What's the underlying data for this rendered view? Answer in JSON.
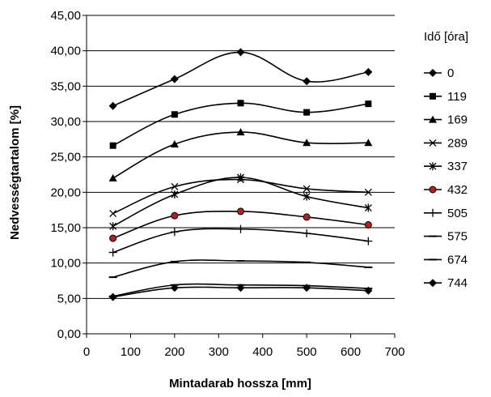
{
  "chart_data": {
    "type": "line",
    "title": "",
    "xlabel": "Mintadarab hossza [mm]",
    "ylabel": "Nedvességtartalom [%]",
    "xlim": [
      0,
      700
    ],
    "ylim": [
      0,
      45
    ],
    "x_ticks": [
      0,
      100,
      200,
      300,
      400,
      500,
      600,
      700
    ],
    "y_ticks": [
      0,
      5,
      10,
      15,
      20,
      25,
      30,
      35,
      40,
      45
    ],
    "x_tick_labels": [
      "0",
      "100",
      "200",
      "300",
      "400",
      "500",
      "600",
      "700"
    ],
    "y_tick_labels": [
      "0,00",
      "5,00",
      "10,00",
      "15,00",
      "20,00",
      "25,00",
      "30,00",
      "35,00",
      "40,00",
      "45,00"
    ],
    "grid": "horizontal",
    "legend_title": "Idő [óra]",
    "legend_position": "right",
    "x": [
      60,
      200,
      350,
      500,
      640
    ],
    "series": [
      {
        "name": "0",
        "marker": "diamond",
        "color": "#000000",
        "values": [
          32.2,
          36.0,
          39.8,
          35.7,
          37.0
        ]
      },
      {
        "name": "119",
        "marker": "square",
        "color": "#000000",
        "values": [
          26.6,
          31.0,
          32.6,
          31.3,
          32.5
        ]
      },
      {
        "name": "169",
        "marker": "triangle",
        "color": "#000000",
        "values": [
          22.0,
          26.8,
          28.5,
          27.0,
          27.0
        ]
      },
      {
        "name": "289",
        "marker": "x",
        "color": "#000000",
        "values": [
          17.0,
          20.8,
          21.8,
          20.5,
          20.0
        ]
      },
      {
        "name": "337",
        "marker": "star",
        "color": "#000000",
        "values": [
          15.2,
          19.7,
          22.1,
          19.4,
          17.8
        ]
      },
      {
        "name": "432",
        "marker": "circle",
        "color": "#000000",
        "fill": "#b22222",
        "values": [
          13.5,
          16.7,
          17.3,
          16.5,
          15.4
        ]
      },
      {
        "name": "505",
        "marker": "plus",
        "color": "#000000",
        "values": [
          11.5,
          14.4,
          14.8,
          14.2,
          13.1
        ]
      },
      {
        "name": "575",
        "marker": "dash",
        "color": "#000000",
        "values": [
          8.0,
          10.2,
          10.3,
          10.1,
          9.4
        ]
      },
      {
        "name": "674",
        "marker": "dash",
        "color": "#000000",
        "values": [
          5.3,
          6.9,
          6.9,
          6.8,
          6.4
        ]
      },
      {
        "name": "744",
        "marker": "diamond",
        "color": "#000000",
        "values": [
          5.2,
          6.5,
          6.5,
          6.5,
          6.1
        ]
      }
    ]
  }
}
